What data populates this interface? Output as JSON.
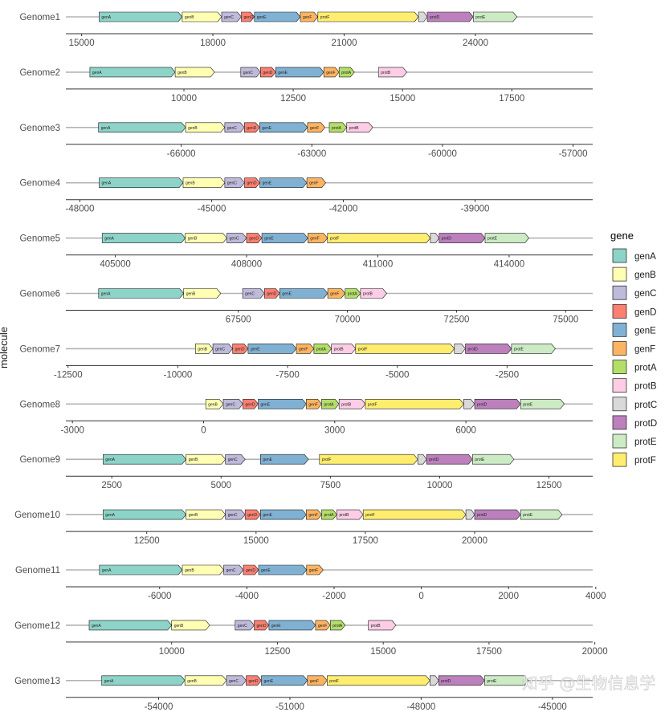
{
  "chart_data": {
    "type": "gene-arrow-map",
    "ylabel": "molecule",
    "legend": {
      "title": "gene",
      "position": "right",
      "items": [
        {
          "name": "genA",
          "color": "#8dd3c7"
        },
        {
          "name": "genB",
          "color": "#ffffb3"
        },
        {
          "name": "genC",
          "color": "#bebada"
        },
        {
          "name": "genD",
          "color": "#fb8072"
        },
        {
          "name": "genE",
          "color": "#80b1d3"
        },
        {
          "name": "genF",
          "color": "#fdb462"
        },
        {
          "name": "protA",
          "color": "#b3de69"
        },
        {
          "name": "protB",
          "color": "#fccde5"
        },
        {
          "name": "protC",
          "color": "#d9d9d9"
        },
        {
          "name": "protD",
          "color": "#bc80bd"
        },
        {
          "name": "protE",
          "color": "#ccebc5"
        },
        {
          "name": "protF",
          "color": "#ffed6f"
        }
      ]
    },
    "genomes": [
      {
        "name": "Genome1",
        "xlim": [
          14640,
          26680
        ],
        "ticks": [
          "15000",
          "18000",
          "21000",
          "24000"
        ],
        "tick_values": [
          15000,
          18000,
          21000,
          24000
        ],
        "genes": [
          [
            "genA",
            15400,
            17300
          ],
          [
            "genB",
            17300,
            18200
          ],
          [
            "genC",
            18200,
            18650
          ],
          [
            "genD",
            18650,
            18950
          ],
          [
            "genE",
            18950,
            20000
          ],
          [
            "genF",
            20000,
            20400
          ],
          [
            "protF",
            20400,
            22700
          ],
          [
            "protC",
            22700,
            22900
          ],
          [
            "protD",
            22900,
            23950
          ],
          [
            "protE",
            23950,
            24950
          ]
        ]
      },
      {
        "name": "Genome2",
        "xlim": [
          7300,
          19350
        ],
        "ticks": [
          "10000",
          "12500",
          "15000",
          "17500"
        ],
        "tick_values": [
          10000,
          12500,
          15000,
          17500
        ],
        "genes": [
          [
            "genA",
            7850,
            9800
          ],
          [
            "genB",
            9800,
            10700
          ],
          [
            "genC",
            11300,
            11750
          ],
          [
            "genD",
            11750,
            12100
          ],
          [
            "genE",
            12100,
            13200
          ],
          [
            "genF",
            13200,
            13550
          ],
          [
            "protA",
            13550,
            13900
          ],
          [
            "protB",
            14450,
            15100
          ]
        ]
      },
      {
        "name": "Genome3",
        "xlim": [
          -68650,
          -56550
        ],
        "ticks": [
          "-66000",
          "-63000",
          "-60000",
          "-57000"
        ],
        "tick_values": [
          -66000,
          -63000,
          -60000,
          -57000
        ],
        "genes": [
          [
            "genA",
            -67900,
            -65900
          ],
          [
            "genB",
            -65900,
            -65000
          ],
          [
            "genC",
            -65000,
            -64550
          ],
          [
            "genD",
            -64550,
            -64200
          ],
          [
            "genE",
            -64200,
            -63100
          ],
          [
            "genF",
            -63100,
            -62700
          ],
          [
            "protA",
            -62600,
            -62200
          ],
          [
            "protB",
            -62200,
            -61600
          ]
        ]
      },
      {
        "name": "Genome4",
        "xlim": [
          -48320,
          -36320
        ],
        "ticks": [
          "-48000",
          "-45000",
          "-42000",
          "-39000"
        ],
        "tick_values": [
          -48000,
          -45000,
          -42000,
          -39000
        ],
        "genes": [
          [
            "genA",
            -47560,
            -45650
          ],
          [
            "genB",
            -45650,
            -44700
          ],
          [
            "genC",
            -44700,
            -44250
          ],
          [
            "genD",
            -44250,
            -43900
          ],
          [
            "genE",
            -43900,
            -42830
          ],
          [
            "genF",
            -42830,
            -42400
          ]
        ]
      },
      {
        "name": "Genome6",
        "xlim": [
          63550,
          75620
        ],
        "ticks": [
          "67500",
          "70000",
          "72500",
          "75000"
        ],
        "tick_values": [
          67500,
          70000,
          72500,
          75000
        ],
        "genes": [
          [
            "genA",
            64300,
            66250
          ],
          [
            "genB",
            66250,
            67100
          ],
          [
            "genC",
            67600,
            68100
          ],
          [
            "genD",
            68100,
            68450
          ],
          [
            "genE",
            68450,
            69550
          ],
          [
            "genF",
            69550,
            69950
          ],
          [
            "protA",
            69950,
            70300
          ],
          [
            "protB",
            70300,
            70900
          ]
        ]
      },
      {
        "name": "Genome5",
        "xlim": [
          403870,
          415910
        ],
        "ticks": [
          "405000",
          "408000",
          "411000",
          "414000"
        ],
        "tick_values": [
          405000,
          408000,
          411000,
          414000
        ],
        "genes": [
          [
            "genA",
            404700,
            406600
          ],
          [
            "genB",
            406600,
            407550
          ],
          [
            "genC",
            407550,
            408000
          ],
          [
            "genD",
            408000,
            408350
          ],
          [
            "genE",
            408350,
            409400
          ],
          [
            "genF",
            409400,
            409850
          ],
          [
            "protF",
            409850,
            412200
          ],
          [
            "protC",
            412200,
            412400
          ],
          [
            "protD",
            412400,
            413450
          ],
          [
            "protE",
            413450,
            414450
          ]
        ]
      },
      {
        "name": "Genome7",
        "xlim": [
          -12550,
          -550
        ],
        "ticks": [
          "-12500",
          "-10000",
          "-7500",
          "-5000",
          "-2500"
        ],
        "tick_values": [
          -12500,
          -10000,
          -7500,
          -5000,
          -2500
        ],
        "genes": [
          [
            "genB",
            -9600,
            -9200
          ],
          [
            "genC",
            -9200,
            -8750
          ],
          [
            "genD",
            -8750,
            -8400
          ],
          [
            "genE",
            -8400,
            -7300
          ],
          [
            "genF",
            -7300,
            -6900
          ],
          [
            "protA",
            -6900,
            -6500
          ],
          [
            "protB",
            -6500,
            -5950
          ],
          [
            "protF",
            -5950,
            -3700
          ],
          [
            "protC",
            -3700,
            -3450
          ],
          [
            "protD",
            -3450,
            -2400
          ],
          [
            "protE",
            -2400,
            -1400
          ]
        ]
      },
      {
        "name": "Genome8",
        "xlim": [
          -3150,
          8900
        ],
        "ticks": [
          "-3000",
          "0",
          "3000",
          "6000"
        ],
        "tick_values": [
          -3000,
          0,
          3000,
          6000
        ],
        "genes": [
          [
            "genB",
            50,
            450
          ],
          [
            "genC",
            450,
            900
          ],
          [
            "genD",
            900,
            1250
          ],
          [
            "genE",
            1250,
            2350
          ],
          [
            "genF",
            2350,
            2700
          ],
          [
            "protA",
            2700,
            3100
          ],
          [
            "protB",
            3100,
            3700
          ],
          [
            "protF",
            3700,
            5950
          ],
          [
            "protC",
            5950,
            6200
          ],
          [
            "protD",
            6200,
            7250
          ],
          [
            "protE",
            7250,
            8250
          ]
        ]
      },
      {
        "name": "Genome9",
        "xlim": [
          1450,
          13500
        ],
        "ticks": [
          "2500",
          "5000",
          "7500",
          "10000",
          "12500"
        ],
        "tick_values": [
          2500,
          5000,
          7500,
          10000,
          12500
        ],
        "genes": [
          [
            "genA",
            2300,
            4200
          ],
          [
            "genB",
            4200,
            5100
          ],
          [
            "genC",
            5100,
            5550
          ],
          [
            "genE",
            5900,
            7000
          ],
          [
            "protF",
            7250,
            9500
          ],
          [
            "protC",
            9500,
            9700
          ],
          [
            "protD",
            9700,
            10750
          ],
          [
            "protE",
            10750,
            11700
          ]
        ]
      },
      {
        "name": "Genome10",
        "xlim": [
          10650,
          22700
        ],
        "ticks": [
          "12500",
          "15000",
          "17500",
          "20000"
        ],
        "tick_values": [
          12500,
          15000,
          17500,
          20000
        ],
        "genes": [
          [
            "genA",
            11500,
            13400
          ],
          [
            "genB",
            13400,
            14300
          ],
          [
            "genC",
            14300,
            14750
          ],
          [
            "genD",
            14750,
            15100
          ],
          [
            "genE",
            15100,
            16150
          ],
          [
            "genF",
            16150,
            16500
          ],
          [
            "protA",
            16500,
            16850
          ],
          [
            "protB",
            16850,
            17450
          ],
          [
            "protF",
            17450,
            19800
          ],
          [
            "protC",
            19800,
            20000
          ],
          [
            "protD",
            20000,
            21050
          ],
          [
            "protE",
            21050,
            22000
          ]
        ]
      },
      {
        "name": "Genome11",
        "xlim": [
          -8150,
          3930
        ],
        "ticks": [
          "-6000",
          "-4000",
          "-2000",
          "0",
          "2000",
          "4000"
        ],
        "tick_values": [
          -6000,
          -4000,
          -2000,
          0,
          2000,
          4000
        ],
        "genes": [
          [
            "genA",
            -7380,
            -5480
          ],
          [
            "genB",
            -5480,
            -4530
          ],
          [
            "genC",
            -4530,
            -4080
          ],
          [
            "genD",
            -4080,
            -3730
          ],
          [
            "genE",
            -3730,
            -2630
          ],
          [
            "genF",
            -2630,
            -2250
          ]
        ]
      },
      {
        "name": "Genome12",
        "xlim": [
          7500,
          19950
        ],
        "ticks": [
          "10000",
          "12500",
          "15000",
          "17500",
          "20000"
        ],
        "tick_values": [
          10000,
          12500,
          15000,
          17500,
          20000
        ],
        "genes": [
          [
            "genA",
            8050,
            10000
          ],
          [
            "genB",
            10000,
            10900
          ],
          [
            "genC",
            11500,
            11950
          ],
          [
            "genD",
            11950,
            12300
          ],
          [
            "genE",
            12300,
            13400
          ],
          [
            "genF",
            13400,
            13750
          ],
          [
            "protA",
            13750,
            14100
          ],
          [
            "protB",
            14650,
            15300
          ]
        ]
      },
      {
        "name": "Genome13",
        "xlim": [
          -56120,
          -44080
        ],
        "ticks": [
          "-54000",
          "-51000",
          "-48000",
          "-45000"
        ],
        "tick_values": [
          -54000,
          -51000,
          -48000,
          -45000
        ],
        "genes": [
          [
            "genA",
            -55300,
            -53400
          ],
          [
            "genB",
            -53400,
            -52450
          ],
          [
            "genC",
            -52450,
            -52000
          ],
          [
            "genD",
            -52000,
            -51650
          ],
          [
            "genE",
            -51650,
            -50600
          ],
          [
            "genF",
            -50600,
            -50150
          ],
          [
            "protF",
            -50150,
            -47800
          ],
          [
            "protC",
            -47800,
            -47600
          ],
          [
            "protD",
            -47600,
            -46550
          ],
          [
            "protE",
            -46550,
            -45550
          ]
        ]
      }
    ]
  },
  "watermark": "知乎 @生物信息学"
}
